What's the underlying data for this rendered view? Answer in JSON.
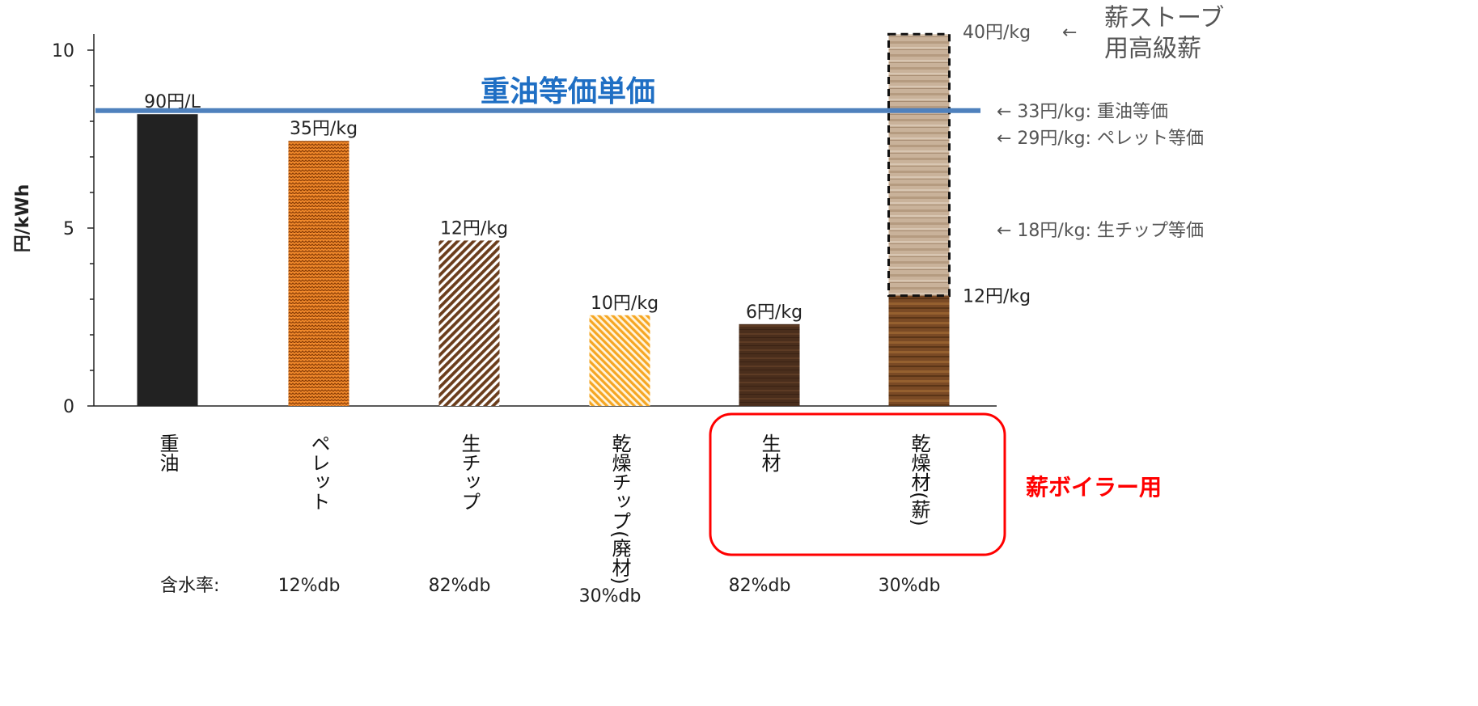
{
  "chart_data": {
    "type": "bar",
    "ylabel": "円/kWh",
    "ylim": [
      0,
      10
    ],
    "yticks": [
      0,
      5,
      10
    ],
    "categories": [
      "重油",
      "ペレット",
      "生チップ",
      "乾燥チップ(廃材)",
      "生材",
      "乾燥材(薪)"
    ],
    "values": [
      8.2,
      7.45,
      4.65,
      2.55,
      2.3,
      3.1
    ],
    "value_labels": [
      "90円/L",
      "35円/kg",
      "12円/kg",
      "10円/kg",
      "6円/kg",
      "12円/kg"
    ],
    "stacked_extra": {
      "category": "乾燥材(薪)",
      "top_value": 10.45,
      "label": "40円/kg"
    },
    "reference_line": {
      "value": 8.3,
      "label": "重油等価単価",
      "color": "#4f81bd"
    },
    "right_annotations": [
      {
        "value": 8.3,
        "text": "← 33円/kg: 重油等価"
      },
      {
        "value": 7.55,
        "text": "← 29円/kg: ペレット等価"
      },
      {
        "value": 4.95,
        "text": "← 18円/kg: 生チップ等価"
      }
    ],
    "top_annotation": {
      "arrow": "←",
      "text_lines": [
        "薪ストーブ",
        "用高級薪"
      ]
    },
    "moisture_label": "含水率:",
    "moisture_values": [
      "",
      "12%db",
      "82%db",
      "30%db",
      "82%db",
      "30%db"
    ],
    "group_label": "薪ボイラー用",
    "colors": {
      "oil": "#222222",
      "pellet": "#f28a2c",
      "chip_green": "#6b3d1c",
      "chip_dry": "#f5a623",
      "green_wood": "#4a2e1c",
      "dry_wood": "#7a4a25",
      "premium_wood": "#c9b29a",
      "highlight": "#ff0000",
      "annotation": "#555555"
    }
  }
}
